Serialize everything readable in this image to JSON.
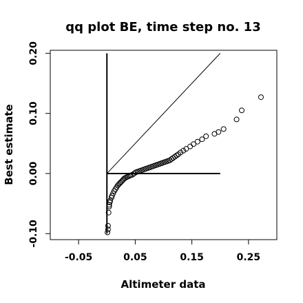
{
  "chart_data": {
    "type": "scatter",
    "title": "qq plot BE, time step no. 13",
    "xlabel": "Altimeter data",
    "ylabel": "Best estimate",
    "xlim": [
      -0.1,
      0.3
    ],
    "ylim": [
      -0.11,
      0.205
    ],
    "x_ticks": [
      -0.05,
      0.05,
      0.15,
      0.25
    ],
    "x_tick_labels": [
      "-0.05",
      "0.05",
      "0.15",
      "0.25"
    ],
    "y_ticks": [
      -0.1,
      0.0,
      0.1,
      0.2
    ],
    "y_tick_labels": [
      "-0.10",
      "0.00",
      "0.10",
      "0.20"
    ],
    "grid": false,
    "reference_lines": [
      {
        "name": "identity",
        "x": [
          0.0,
          0.2
        ],
        "y": [
          0.0,
          0.2
        ],
        "stroke_width": 1
      },
      {
        "name": "vertical-axis",
        "x": [
          0.0,
          0.0
        ],
        "y": [
          -0.1,
          0.2
        ],
        "stroke_width": 2
      },
      {
        "name": "horizontal-axis",
        "x": [
          0.0,
          0.2
        ],
        "y": [
          0.0,
          0.0
        ],
        "stroke_width": 2
      }
    ],
    "points": {
      "x": [
        0.001,
        0.002,
        0.002,
        0.003,
        0.004,
        0.004,
        0.005,
        0.006,
        0.008,
        0.009,
        0.011,
        0.013,
        0.015,
        0.017,
        0.019,
        0.021,
        0.023,
        0.025,
        0.027,
        0.029,
        0.031,
        0.033,
        0.035,
        0.037,
        0.04,
        0.042,
        0.045,
        0.048,
        0.051,
        0.054,
        0.057,
        0.06,
        0.063,
        0.066,
        0.069,
        0.072,
        0.075,
        0.078,
        0.081,
        0.084,
        0.087,
        0.09,
        0.093,
        0.096,
        0.099,
        0.102,
        0.105,
        0.108,
        0.111,
        0.114,
        0.117,
        0.12,
        0.123,
        0.126,
        0.13,
        0.135,
        0.14,
        0.147,
        0.153,
        0.16,
        0.168,
        0.175,
        0.19,
        0.197,
        0.206,
        0.229,
        0.238,
        0.272
      ],
      "y": [
        -0.098,
        -0.093,
        -0.087,
        -0.065,
        -0.055,
        -0.052,
        -0.048,
        -0.045,
        -0.04,
        -0.037,
        -0.033,
        -0.029,
        -0.026,
        -0.023,
        -0.02,
        -0.018,
        -0.016,
        -0.014,
        -0.012,
        -0.01,
        -0.008,
        -0.007,
        -0.006,
        -0.005,
        -0.004,
        -0.003,
        -0.002,
        0.0,
        0.002,
        0.003,
        0.004,
        0.005,
        0.006,
        0.007,
        0.008,
        0.009,
        0.01,
        0.011,
        0.012,
        0.013,
        0.014,
        0.015,
        0.016,
        0.017,
        0.018,
        0.019,
        0.02,
        0.021,
        0.022,
        0.024,
        0.026,
        0.028,
        0.03,
        0.032,
        0.035,
        0.038,
        0.041,
        0.045,
        0.049,
        0.053,
        0.057,
        0.062,
        0.066,
        0.069,
        0.074,
        0.09,
        0.105,
        0.127
      ]
    }
  }
}
